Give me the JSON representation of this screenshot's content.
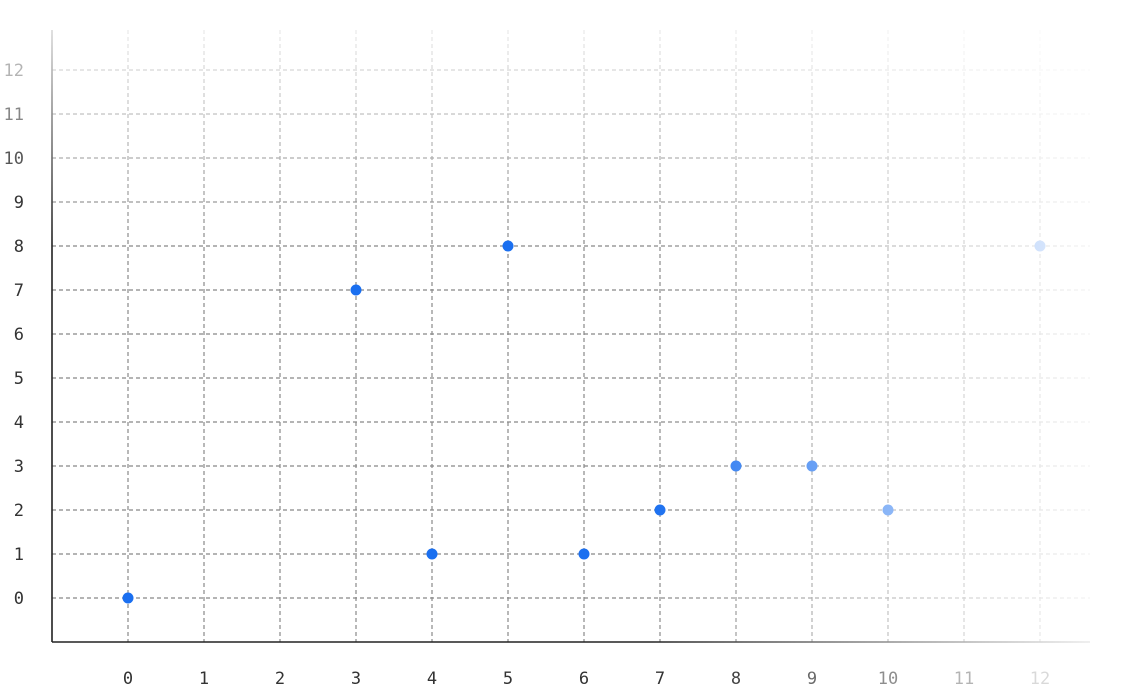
{
  "chart_data": {
    "type": "scatter",
    "title": "",
    "xlabel": "",
    "ylabel": "",
    "x": [
      0,
      3,
      4,
      5,
      6,
      7,
      8,
      9,
      10,
      12
    ],
    "y": [
      0,
      7,
      1,
      8,
      1,
      2,
      3,
      3,
      2,
      8
    ],
    "xlim": [
      -1,
      12.5
    ],
    "ylim": [
      -1,
      12.5
    ],
    "x_ticks": [
      "0",
      "1",
      "2",
      "3",
      "4",
      "5",
      "6",
      "7",
      "8",
      "9",
      "10",
      "11",
      "12"
    ],
    "y_ticks": [
      "0",
      "1",
      "2",
      "3",
      "4",
      "5",
      "6",
      "7",
      "8",
      "9",
      "10",
      "11",
      "12"
    ],
    "grid": true,
    "point_color": "#1a6ff0",
    "fade_toward": "right and top"
  }
}
